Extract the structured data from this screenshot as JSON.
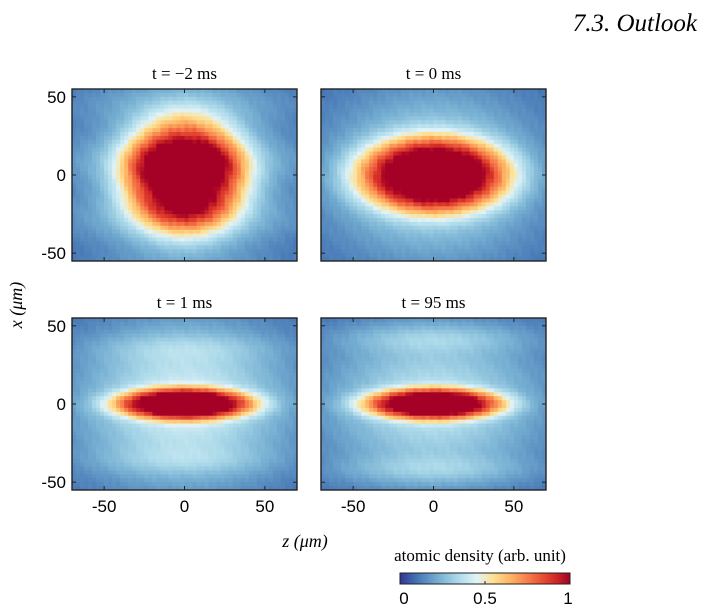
{
  "page": {
    "header": "7.3.  Outlook"
  },
  "chart_data": {
    "type": "heatmap",
    "panel_titles": [
      "t = −2 ms",
      "t = 0 ms",
      "t = 1 ms",
      "t = 95 ms"
    ],
    "xlabel": "z (μm)",
    "ylabel": "x (μm)",
    "xlim": [
      -70,
      70
    ],
    "ylim": [
      -55,
      55
    ],
    "xticks": [
      -50,
      0,
      50
    ],
    "xtick_labels": [
      "-50",
      "0",
      "50"
    ],
    "yticks": [
      50,
      0,
      -50
    ],
    "ytick_labels": [
      "50",
      "0",
      "-50"
    ],
    "colorbar": {
      "label": "atomic density (arb. unit)",
      "ticks": [
        0,
        0.5,
        1
      ],
      "tick_labels": [
        "0",
        "0.5",
        "1"
      ],
      "colormap": "RdYlBu_r",
      "range": [
        0,
        1
      ]
    },
    "panels": [
      {
        "core_z_halfwidth": 38,
        "core_x_halfwidth": 36,
        "halo_z": 62,
        "halo_x": 60,
        "halo_level": 0.3,
        "fringe_x": 0,
        "fringe_amp": 0.0
      },
      {
        "core_z_halfwidth": 48,
        "core_x_halfwidth": 24,
        "halo_z": 62,
        "halo_x": 50,
        "halo_level": 0.32,
        "fringe_x": 0,
        "fringe_amp": 0.0
      },
      {
        "core_z_halfwidth": 44,
        "core_x_halfwidth": 10,
        "halo_z": 64,
        "halo_x": 50,
        "halo_level": 0.35,
        "fringe_x": 36,
        "fringe_amp": 0.08
      },
      {
        "core_z_halfwidth": 44,
        "core_x_halfwidth": 10,
        "halo_z": 66,
        "halo_x": 48,
        "halo_level": 0.3,
        "fringe_x": 42,
        "fringe_amp": 0.12
      }
    ]
  }
}
